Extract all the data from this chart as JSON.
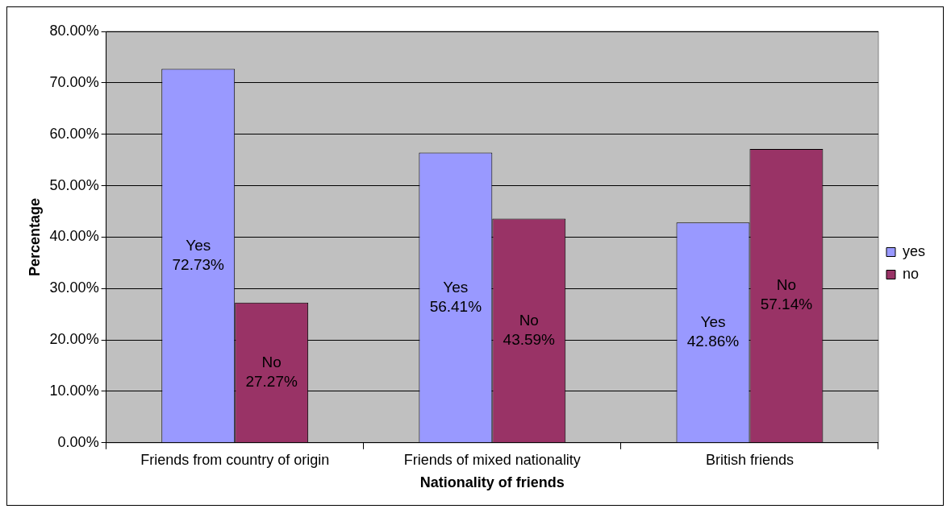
{
  "chart_data": {
    "type": "bar",
    "xlabel": "Nationality of friends",
    "ylabel": "Percentage",
    "categories": [
      "Friends from country of origin",
      "Friends of mixed nationality",
      "British friends"
    ],
    "series": [
      {
        "name": "yes",
        "color": "#9999ff",
        "values": [
          72.73,
          56.41,
          42.86
        ],
        "value_labels": [
          "Yes\n72.73%",
          "Yes\n56.41%",
          "Yes\n42.86%"
        ]
      },
      {
        "name": "no",
        "color": "#993366",
        "values": [
          27.27,
          43.59,
          57.14
        ],
        "value_labels": [
          "No\n27.27%",
          "No\n43.59%",
          "No\n57.14%"
        ]
      }
    ],
    "ylim": [
      0,
      80
    ],
    "yticks": [
      {
        "value": 0,
        "label": "0.00%"
      },
      {
        "value": 10,
        "label": "10.00%"
      },
      {
        "value": 20,
        "label": "20.00%"
      },
      {
        "value": 30,
        "label": "30.00%"
      },
      {
        "value": 40,
        "label": "40.00%"
      },
      {
        "value": 50,
        "label": "50.00%"
      },
      {
        "value": 60,
        "label": "60.00%"
      },
      {
        "value": 70,
        "label": "70.00%"
      },
      {
        "value": 80,
        "label": "80.00%"
      }
    ],
    "grid": "y",
    "legend": "right"
  }
}
